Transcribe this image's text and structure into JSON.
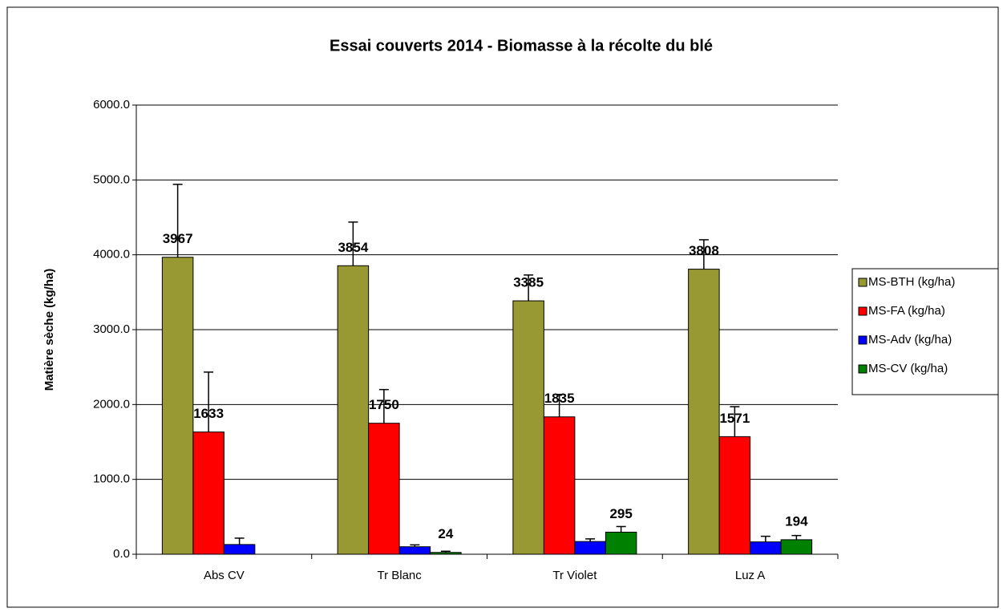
{
  "chart_data": {
    "type": "bar",
    "title": "Essai couverts 2014 - Biomasse à la récolte du blé",
    "y_label": "Matière sèche (kg/ha)",
    "categories": [
      "Abs CV",
      "Tr Blanc",
      "Tr Violet",
      "Luz A"
    ],
    "series": [
      {
        "name": "MS-BTH (kg/ha)",
        "color": "#999933",
        "values": [
          3967,
          3854,
          3385,
          3808
        ],
        "errors": [
          974,
          583,
          345,
          393
        ],
        "show_labels": true
      },
      {
        "name": "MS-FA (kg/ha)",
        "color": "#ff0000",
        "values": [
          1633,
          1750,
          1835,
          1571
        ],
        "errors": [
          800,
          450,
          300,
          400
        ],
        "show_labels": true
      },
      {
        "name": "MS-Adv (kg/ha)",
        "color": "#0000ff",
        "values": [
          130,
          100,
          170,
          165
        ],
        "errors": [
          85,
          25,
          35,
          75
        ],
        "show_labels": false
      },
      {
        "name": "MS-CV (kg/ha)",
        "color": "#008000",
        "values": [
          null,
          24,
          295,
          194
        ],
        "errors": [
          null,
          16,
          75,
          56
        ],
        "show_labels": true
      }
    ],
    "ylim": [
      0,
      6000
    ],
    "yticks": [
      {
        "value": 0,
        "label": "0.0"
      },
      {
        "value": 1000,
        "label": "1000.0"
      },
      {
        "value": 2000,
        "label": "2000.0"
      },
      {
        "value": 3000,
        "label": "3000.0"
      },
      {
        "value": 4000,
        "label": "4000.0"
      },
      {
        "value": 5000,
        "label": "5000.0"
      },
      {
        "value": 6000,
        "label": "6000.0"
      }
    ],
    "grid": true,
    "legend": "right"
  }
}
